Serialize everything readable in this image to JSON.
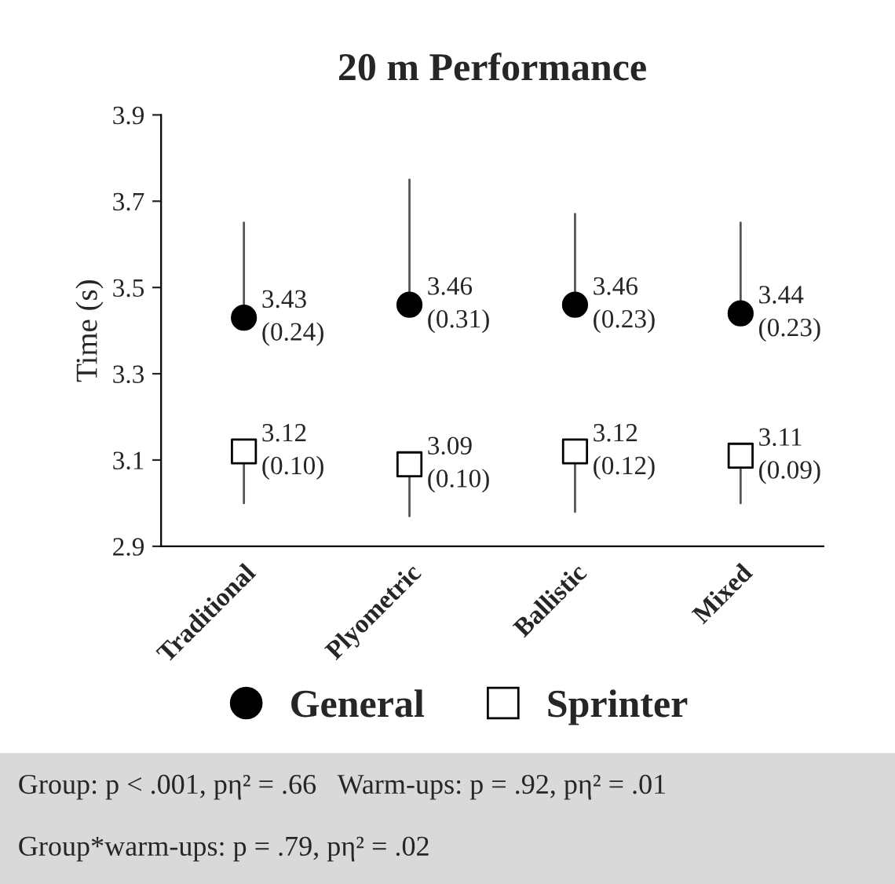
{
  "chart_data": {
    "type": "scatter",
    "title": "20 m Performance",
    "ylabel": "Time (s)",
    "categories": [
      "Traditional",
      "Plyometric",
      "Ballistic",
      "Mixed"
    ],
    "series": [
      {
        "name": "General",
        "color": "#000000",
        "marker": "circle",
        "values": [
          3.43,
          3.46,
          3.46,
          3.44
        ],
        "errors": [
          [
            3.43,
            3.65
          ],
          [
            3.46,
            3.75
          ],
          [
            3.46,
            3.67
          ],
          [
            3.44,
            3.65
          ]
        ],
        "value_labels": [
          "3.43\n(0.24)",
          "3.46\n(0.31)",
          "3.46\n(0.23)",
          "3.44\n(0.23)"
        ]
      },
      {
        "name": "Sprinter",
        "color": "#ffffff",
        "marker": "square",
        "values": [
          3.12,
          3.09,
          3.12,
          3.11
        ],
        "errors": [
          [
            3.0,
            3.12
          ],
          [
            2.97,
            3.09
          ],
          [
            2.98,
            3.12
          ],
          [
            3.0,
            3.11
          ]
        ],
        "value_labels": [
          "3.12\n(0.10)",
          "3.09\n(0.10)",
          "3.12\n(0.12)",
          "3.11\n(0.09)"
        ]
      }
    ],
    "ylim": [
      2.9,
      3.9
    ],
    "yticks": [
      2.9,
      3.1,
      3.3,
      3.5,
      3.7,
      3.9
    ],
    "grid": false,
    "legend": "bottom",
    "annotations": [
      "Group: p < .001, pη² = .66   Warm-ups: p = .92, pη² = .01",
      "Group*warm-ups: p = .79, pη² = .02"
    ]
  }
}
